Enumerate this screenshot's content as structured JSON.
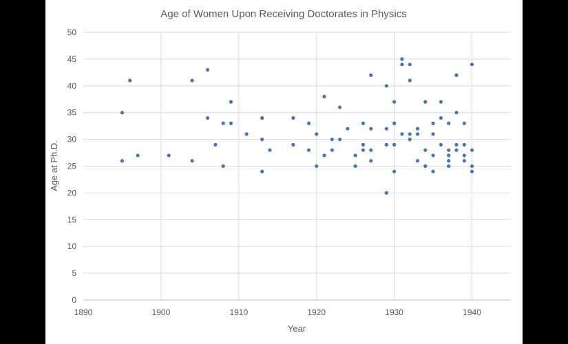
{
  "chart_data": {
    "type": "scatter",
    "title": "Age of Women Upon Receiving Doctorates in Physics",
    "xlabel": "Year",
    "ylabel": "Age at Ph.D.",
    "xlim": [
      1890,
      1945
    ],
    "ylim": [
      0,
      50
    ],
    "xticks": [
      1890,
      1900,
      1910,
      1920,
      1930,
      1940
    ],
    "yticks": [
      0,
      5,
      10,
      15,
      20,
      25,
      30,
      35,
      40,
      45,
      50
    ],
    "grid": "major",
    "legend": "none",
    "color": "#4472c4",
    "series": [
      {
        "points": [
          [
            1895,
            35
          ],
          [
            1895,
            26
          ],
          [
            1896,
            41
          ],
          [
            1897,
            27
          ],
          [
            1901,
            27
          ],
          [
            1904,
            41
          ],
          [
            1904,
            26
          ],
          [
            1906,
            43
          ],
          [
            1906,
            34
          ],
          [
            1907,
            29
          ],
          [
            1908,
            33
          ],
          [
            1908,
            25
          ],
          [
            1909,
            37
          ],
          [
            1909,
            33
          ],
          [
            1911,
            31
          ],
          [
            1913,
            34
          ],
          [
            1913,
            30
          ],
          [
            1913,
            24
          ],
          [
            1914,
            28
          ],
          [
            1917,
            34
          ],
          [
            1917,
            29
          ],
          [
            1919,
            33
          ],
          [
            1919,
            28
          ],
          [
            1920,
            31
          ],
          [
            1920,
            25
          ],
          [
            1921,
            38
          ],
          [
            1921,
            27
          ],
          [
            1922,
            30
          ],
          [
            1922,
            28
          ],
          [
            1923,
            36
          ],
          [
            1923,
            30
          ],
          [
            1924,
            32
          ],
          [
            1925,
            27
          ],
          [
            1925,
            25
          ],
          [
            1926,
            33
          ],
          [
            1926,
            29
          ],
          [
            1926,
            28
          ],
          [
            1927,
            42
          ],
          [
            1927,
            32
          ],
          [
            1927,
            28
          ],
          [
            1927,
            26
          ],
          [
            1929,
            40
          ],
          [
            1929,
            32
          ],
          [
            1929,
            29
          ],
          [
            1929,
            20
          ],
          [
            1930,
            37
          ],
          [
            1930,
            33
          ],
          [
            1930,
            29
          ],
          [
            1930,
            24
          ],
          [
            1931,
            45
          ],
          [
            1931,
            44
          ],
          [
            1931,
            31
          ],
          [
            1932,
            44
          ],
          [
            1932,
            41
          ],
          [
            1932,
            31
          ],
          [
            1932,
            30
          ],
          [
            1933,
            32
          ],
          [
            1933,
            31
          ],
          [
            1933,
            26
          ],
          [
            1934,
            37
          ],
          [
            1934,
            28
          ],
          [
            1934,
            25
          ],
          [
            1935,
            33
          ],
          [
            1935,
            31
          ],
          [
            1935,
            27
          ],
          [
            1935,
            24
          ],
          [
            1936,
            37
          ],
          [
            1936,
            34
          ],
          [
            1936,
            29
          ],
          [
            1937,
            33
          ],
          [
            1937,
            28
          ],
          [
            1937,
            27
          ],
          [
            1937,
            26
          ],
          [
            1937,
            25
          ],
          [
            1938,
            42
          ],
          [
            1938,
            35
          ],
          [
            1938,
            29
          ],
          [
            1938,
            28
          ],
          [
            1939,
            33
          ],
          [
            1939,
            29
          ],
          [
            1939,
            27
          ],
          [
            1939,
            26
          ],
          [
            1940,
            44
          ],
          [
            1940,
            28
          ],
          [
            1940,
            25
          ],
          [
            1940,
            24
          ]
        ]
      }
    ]
  }
}
